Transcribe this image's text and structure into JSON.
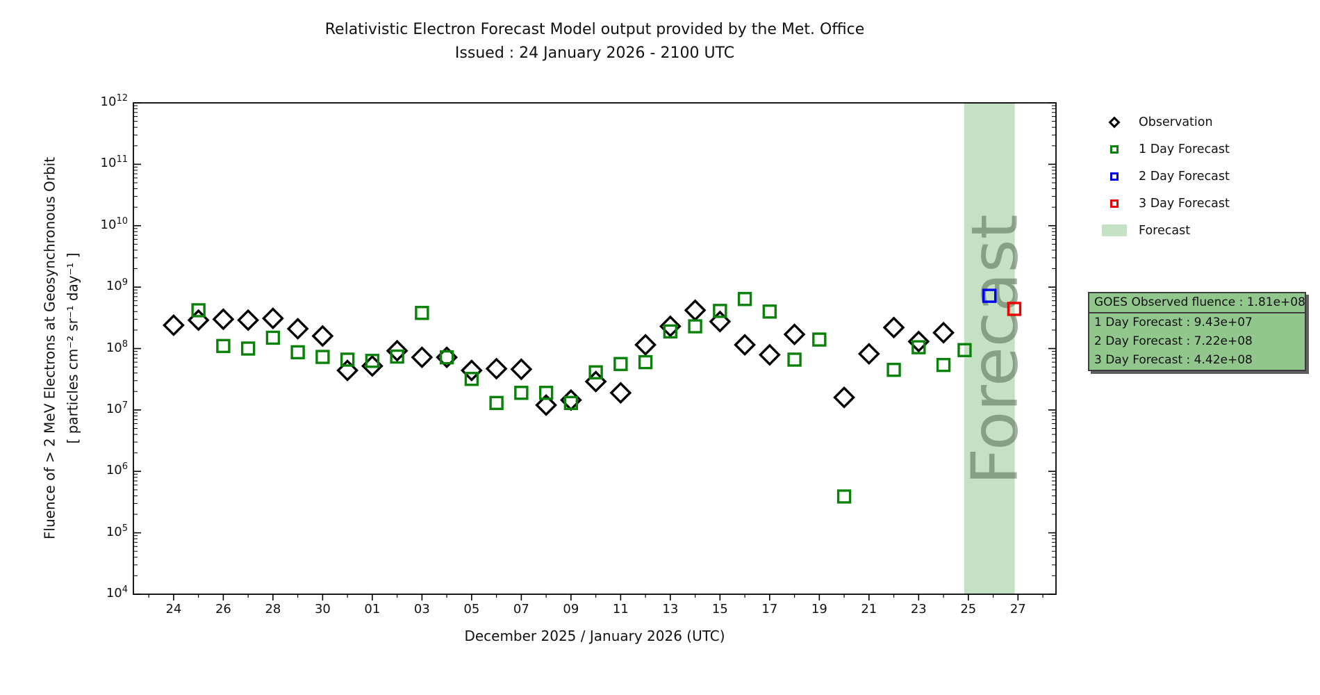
{
  "title": {
    "line1": "Relativistic Electron Forecast Model output provided by the Met. Office",
    "line2": "Issued : 24 January 2026 - 2100 UTC"
  },
  "axes": {
    "xlabel": "December 2025 / January 2026 (UTC)",
    "ylabel_line1": "Fluence of > 2 MeV Electrons at Geosynchronous Orbit",
    "ylabel_line2": "[ particles cm⁻² sr⁻¹ day⁻¹ ]"
  },
  "legend": {
    "items": [
      {
        "label": "Observation",
        "marker": "diamond",
        "color": "#000000"
      },
      {
        "label": "1 Day Forecast",
        "marker": "square",
        "color": "#0a820a"
      },
      {
        "label": "2 Day Forecast",
        "marker": "square",
        "color": "#0000ee"
      },
      {
        "label": "3 Day Forecast",
        "marker": "square",
        "color": "#ee0000"
      },
      {
        "label": "Forecast",
        "marker": "patch",
        "color": "#c5e1c3"
      }
    ]
  },
  "info_box": {
    "lines": [
      "GOES Observed fluence : 1.81e+08",
      "1 Day Forecast : 9.43e+07",
      "2 Day Forecast : 7.22e+08",
      "3 Day Forecast : 4.42e+08"
    ],
    "background": "#91c78d"
  },
  "watermark": "Forecast",
  "colors": {
    "observation": "#000000",
    "forecast_1day": "#0a820a",
    "forecast_2day": "#0000ee",
    "forecast_3day": "#ee0000",
    "forecast_band": "#c5e1c3",
    "watermark": "rgba(72,96,72,0.5)"
  },
  "chart_data": {
    "type": "scatter",
    "title": "Relativistic Electron Forecast Model output provided by the Met. Office",
    "subtitle": "Issued : 24 January 2026 - 2100 UTC",
    "xlabel": "December 2025 / January 2026 (UTC)",
    "ylabel": "Fluence of > 2 MeV Electrons at Geosynchronous Orbit [ particles cm-2 sr-1 day-1 ]",
    "grid": false,
    "legend_position": "outside-right",
    "day_index_origin": "day 0 = 24 December 2025, 1 unit = 1 day",
    "x_axis": {
      "min": -1.62,
      "max": 35.53,
      "minor_tick_step": 1,
      "major_ticks": [
        {
          "d": 0,
          "label": "24"
        },
        {
          "d": 2,
          "label": "26"
        },
        {
          "d": 4,
          "label": "28"
        },
        {
          "d": 6,
          "label": "30"
        },
        {
          "d": 8,
          "label": "01"
        },
        {
          "d": 10,
          "label": "03"
        },
        {
          "d": 12,
          "label": "05"
        },
        {
          "d": 14,
          "label": "07"
        },
        {
          "d": 16,
          "label": "09"
        },
        {
          "d": 18,
          "label": "11"
        },
        {
          "d": 20,
          "label": "13"
        },
        {
          "d": 22,
          "label": "15"
        },
        {
          "d": 24,
          "label": "17"
        },
        {
          "d": 26,
          "label": "19"
        },
        {
          "d": 28,
          "label": "21"
        },
        {
          "d": 30,
          "label": "23"
        },
        {
          "d": 32,
          "label": "25"
        },
        {
          "d": 34,
          "label": "27"
        }
      ]
    },
    "y_axis": {
      "scale": "log",
      "min": 10000.0,
      "max": 1000000000000.0,
      "decade_exponents": [
        4,
        5,
        6,
        7,
        8,
        9,
        10,
        11,
        12
      ]
    },
    "forecast_band": {
      "start": 31.83,
      "end": 33.87
    },
    "series": [
      {
        "name": "Observation",
        "marker": "diamond",
        "color": "#000000",
        "points": [
          [
            0,
            240000000.0
          ],
          [
            1,
            290000000.0
          ],
          [
            2,
            300000000.0
          ],
          [
            3,
            290000000.0
          ],
          [
            4,
            310000000.0
          ],
          [
            5,
            210000000.0
          ],
          [
            6,
            160000000.0
          ],
          [
            7,
            44000000.0
          ],
          [
            8,
            52000000.0
          ],
          [
            9,
            92000000.0
          ],
          [
            10,
            72000000.0
          ],
          [
            11,
            72000000.0
          ],
          [
            12,
            44000000.0
          ],
          [
            13,
            47000000.0
          ],
          [
            14,
            46000000.0
          ],
          [
            15,
            12000000.0
          ],
          [
            16,
            14500000.0
          ],
          [
            17,
            29000000.0
          ],
          [
            18,
            19000000.0
          ],
          [
            19,
            115000000.0
          ],
          [
            20,
            230000000.0
          ],
          [
            21,
            420000000.0
          ],
          [
            22,
            275000000.0
          ],
          [
            23,
            115000000.0
          ],
          [
            24,
            79000000.0
          ],
          [
            25,
            170000000.0
          ],
          [
            27,
            16000000.0
          ],
          [
            28,
            82000000.0
          ],
          [
            29,
            220000000.0
          ],
          [
            30,
            130000000.0
          ],
          [
            31,
            181000000.0
          ]
        ]
      },
      {
        "name": "1 Day Forecast",
        "marker": "square",
        "color": "#0a820a",
        "points": [
          [
            1,
            420000000.0
          ],
          [
            2,
            110000000.0
          ],
          [
            3,
            100000000.0
          ],
          [
            4,
            150000000.0
          ],
          [
            5,
            87000000.0
          ],
          [
            6,
            73000000.0
          ],
          [
            7,
            66000000.0
          ],
          [
            8,
            63000000.0
          ],
          [
            9,
            74000000.0
          ],
          [
            10,
            380000000.0
          ],
          [
            11,
            72000000.0
          ],
          [
            12,
            32000000.0
          ],
          [
            13,
            13000000.0
          ],
          [
            14,
            19000000.0
          ],
          [
            15,
            19000000.0
          ],
          [
            16,
            13000000.0
          ],
          [
            17,
            41000000.0
          ],
          [
            18,
            56000000.0
          ],
          [
            19,
            60000000.0
          ],
          [
            20,
            190000000.0
          ],
          [
            21,
            230000000.0
          ],
          [
            22,
            410000000.0
          ],
          [
            23,
            640000000.0
          ],
          [
            24,
            400000000.0
          ],
          [
            25,
            66000000.0
          ],
          [
            26,
            140000000.0
          ],
          [
            27,
            390000.0
          ],
          [
            29,
            45000000.0
          ],
          [
            30,
            105000000.0
          ],
          [
            31,
            54000000.0
          ],
          [
            31.85,
            94300000.0
          ]
        ]
      },
      {
        "name": "2 Day Forecast",
        "marker": "square",
        "color": "#0000ee",
        "points": [
          [
            32.85,
            722000000.0
          ]
        ]
      },
      {
        "name": "3 Day Forecast",
        "marker": "square",
        "color": "#ee0000",
        "points": [
          [
            33.85,
            442000000.0
          ]
        ]
      }
    ]
  }
}
